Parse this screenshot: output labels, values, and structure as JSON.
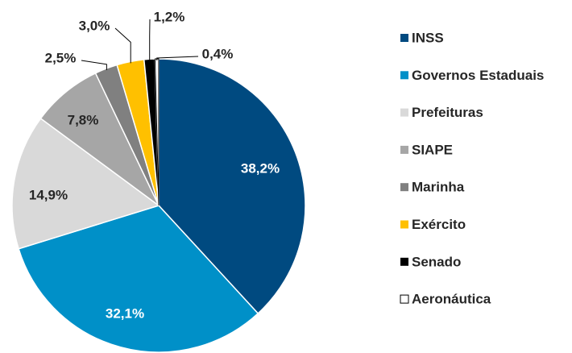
{
  "chart_data": {
    "type": "pie",
    "categories": [
      "INSS",
      "Governos Estaduais",
      "Prefeituras",
      "SIAPE",
      "Marinha",
      "Exército",
      "Senado",
      "Aeronáutica"
    ],
    "values": [
      38.2,
      32.1,
      14.9,
      7.8,
      2.5,
      3.0,
      1.2,
      0.4
    ],
    "value_labels": [
      "38,2%",
      "32,1%",
      "14,9%",
      "7,8%",
      "2,5%",
      "3,0%",
      "1,2%",
      "0,4%"
    ],
    "colors": [
      "#004a80",
      "#0090c8",
      "#d9d9d9",
      "#a6a6a6",
      "#808080",
      "#ffc000",
      "#000000",
      "#ffffff"
    ],
    "legend": "right"
  }
}
